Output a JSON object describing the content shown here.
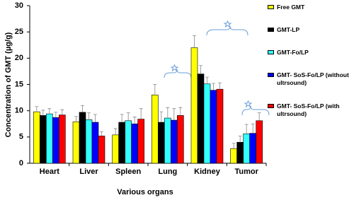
{
  "chart_data": {
    "type": "bar",
    "y_label": "Concentration of GMT (µg/g)",
    "x_label": "Various organs",
    "categories": [
      "Heart",
      "Liver",
      "Spleen",
      "Lung",
      "Kidney",
      "Tumor"
    ],
    "series": [
      {
        "name": "Free GMT",
        "color": "#ffff00",
        "values": [
          9.8,
          7.9,
          5.4,
          13.0,
          22.0,
          2.8
        ],
        "errors": [
          1.0,
          1.0,
          1.2,
          2.0,
          2.3,
          1.0
        ]
      },
      {
        "name": "GMT-LP",
        "color": "#000000",
        "values": [
          9.1,
          9.7,
          7.8,
          7.8,
          17.0,
          4.0
        ],
        "errors": [
          1.0,
          1.3,
          1.5,
          2.0,
          1.6,
          1.2
        ]
      },
      {
        "name": "GMT-Fo/LP",
        "color": "#33ffff",
        "values": [
          9.4,
          8.3,
          8.1,
          8.6,
          15.1,
          5.6
        ],
        "errors": [
          1.0,
          1.3,
          1.5,
          2.0,
          1.3,
          1.8
        ]
      },
      {
        "name": "GMT- SoS-Fo/LP (without ultrsound)",
        "color": "#0000ff",
        "values": [
          8.7,
          7.8,
          7.5,
          8.2,
          13.9,
          5.7
        ],
        "errors": [
          1.0,
          1.5,
          1.3,
          2.2,
          1.3,
          1.8
        ]
      },
      {
        "name": "GMT- SoS-Fo/LP (with ultrsound)",
        "color": "#ff0000",
        "values": [
          9.2,
          5.2,
          8.4,
          9.1,
          14.1,
          8.1
        ],
        "errors": [
          1.0,
          0.8,
          2.0,
          1.5,
          1.2,
          1.5
        ]
      }
    ],
    "ylim": [
      0,
      30
    ],
    "yticks": [
      0,
      5,
      10,
      15,
      20,
      25,
      30
    ],
    "legend": "right"
  }
}
